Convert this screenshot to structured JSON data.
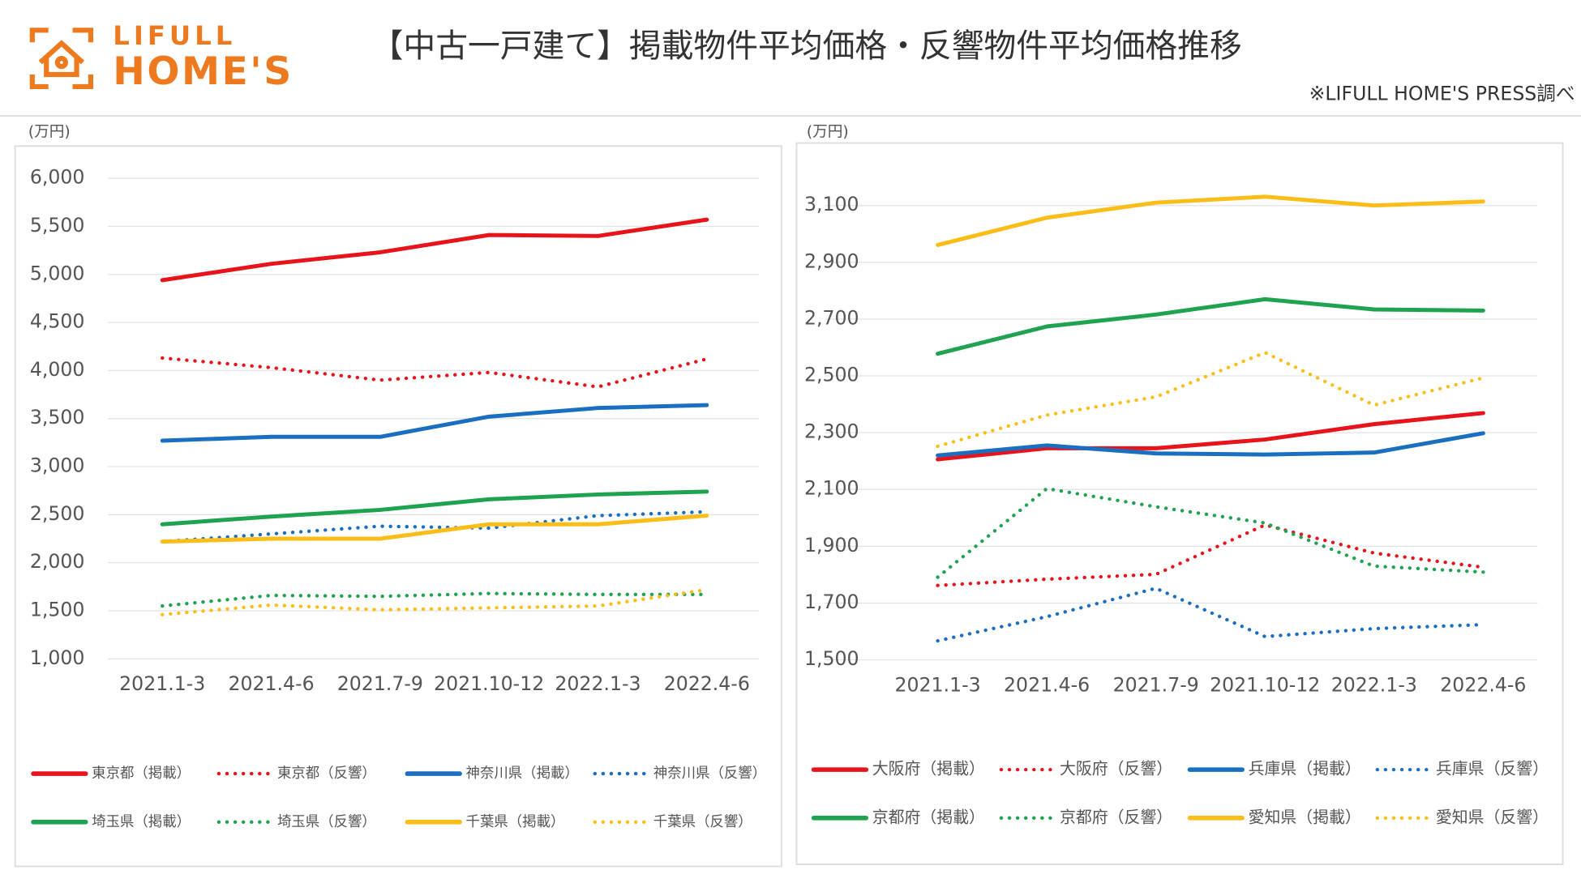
{
  "header": {
    "logo_top": "LIFULL",
    "logo_bottom": "HOME'S",
    "title": "【中古一戸建て】掲載物件平均価格・反響物件平均価格推移",
    "note": "※LIFULL HOME'S PRESS調べ"
  },
  "chart_data": [
    {
      "type": "line",
      "y_label": "(万円)",
      "grid": true,
      "categories": [
        "2021.1-3",
        "2021.4-6",
        "2021.7-9",
        "2021.10-12",
        "2022.1-3",
        "2022.4-6"
      ],
      "ylim": [
        1000,
        6000
      ],
      "yticks": [
        {
          "value": 1000,
          "label": "1,000"
        },
        {
          "value": 1500,
          "label": "1,500"
        },
        {
          "value": 2000,
          "label": "2,000"
        },
        {
          "value": 2500,
          "label": "2,500"
        },
        {
          "value": 3000,
          "label": "3,000"
        },
        {
          "value": 3500,
          "label": "3,500"
        },
        {
          "value": 4000,
          "label": "4,000"
        },
        {
          "value": 4500,
          "label": "4,500"
        },
        {
          "value": 5000,
          "label": "5,000"
        },
        {
          "value": 5500,
          "label": "5,500"
        },
        {
          "value": 6000,
          "label": "6,000"
        }
      ],
      "series": [
        {
          "name": "東京都（掲載）",
          "color": "#e8141b",
          "style": "solid",
          "values": [
            4940,
            5110,
            5230,
            5410,
            5400,
            5570
          ]
        },
        {
          "name": "東京都（反響）",
          "color": "#e8141b",
          "style": "dotted",
          "values": [
            4130,
            4030,
            3900,
            3980,
            3830,
            4120
          ]
        },
        {
          "name": "神奈川県（掲載）",
          "color": "#1a6fc0",
          "style": "solid",
          "values": [
            3270,
            3310,
            3310,
            3520,
            3610,
            3640
          ]
        },
        {
          "name": "神奈川県（反響）",
          "color": "#1a6fc0",
          "style": "dotted",
          "values": [
            2220,
            2300,
            2380,
            2360,
            2490,
            2530
          ]
        },
        {
          "name": "埼玉県（掲載）",
          "color": "#1fa351",
          "style": "solid",
          "values": [
            2400,
            2480,
            2550,
            2660,
            2710,
            2740
          ]
        },
        {
          "name": "埼玉県（反響）",
          "color": "#1fa351",
          "style": "dotted",
          "values": [
            1550,
            1660,
            1650,
            1680,
            1670,
            1670
          ]
        },
        {
          "name": "千葉県（掲載）",
          "color": "#fbbd18",
          "style": "solid",
          "values": [
            2220,
            2250,
            2250,
            2400,
            2400,
            2490
          ]
        },
        {
          "name": "千葉県（反響）",
          "color": "#fbbd18",
          "style": "dotted",
          "values": [
            1460,
            1560,
            1510,
            1530,
            1550,
            1720
          ]
        }
      ]
    },
    {
      "type": "line",
      "y_label": "(万円)",
      "grid": true,
      "categories": [
        "2021.1-3",
        "2021.4-6",
        "2021.7-9",
        "2021.10-12",
        "2022.1-3",
        "2022.4-6"
      ],
      "ylim": [
        1500,
        3100
      ],
      "yticks": [
        {
          "value": 1500,
          "label": "1,500"
        },
        {
          "value": 1700,
          "label": "1,700"
        },
        {
          "value": 1900,
          "label": "1,900"
        },
        {
          "value": 2100,
          "label": "2,100"
        },
        {
          "value": 2300,
          "label": "2,300"
        },
        {
          "value": 2500,
          "label": "2,500"
        },
        {
          "value": 2700,
          "label": "2,700"
        },
        {
          "value": 2900,
          "label": "2,900"
        },
        {
          "value": 3100,
          "label": "3,100"
        }
      ],
      "series": [
        {
          "name": "大阪府（掲載）",
          "color": "#e8141b",
          "style": "solid",
          "values": [
            2206,
            2245,
            2245,
            2276,
            2330,
            2369
          ]
        },
        {
          "name": "大阪府（反響）",
          "color": "#e8141b",
          "style": "dotted",
          "values": [
            1762,
            1784,
            1801,
            1975,
            1876,
            1826
          ]
        },
        {
          "name": "兵庫県（掲載）",
          "color": "#1a6fc0",
          "style": "solid",
          "values": [
            2220,
            2255,
            2227,
            2223,
            2230,
            2298
          ]
        },
        {
          "name": "兵庫県（反響）",
          "color": "#1a6fc0",
          "style": "dotted",
          "values": [
            1567,
            1652,
            1752,
            1582,
            1610,
            1624
          ]
        },
        {
          "name": "京都府（掲載）",
          "color": "#1fa351",
          "style": "solid",
          "values": [
            2578,
            2674,
            2716,
            2770,
            2734,
            2730
          ]
        },
        {
          "name": "京都府（反響）",
          "color": "#1fa351",
          "style": "dotted",
          "values": [
            1791,
            2103,
            2039,
            1982,
            1830,
            1809
          ]
        },
        {
          "name": "愛知県（掲載）",
          "color": "#fbbd18",
          "style": "solid",
          "values": [
            2961,
            3057,
            3110,
            3131,
            3100,
            3114
          ]
        },
        {
          "name": "愛知県（反響）",
          "color": "#fbbd18",
          "style": "dotted",
          "values": [
            2252,
            2362,
            2426,
            2582,
            2397,
            2493
          ]
        }
      ]
    }
  ]
}
